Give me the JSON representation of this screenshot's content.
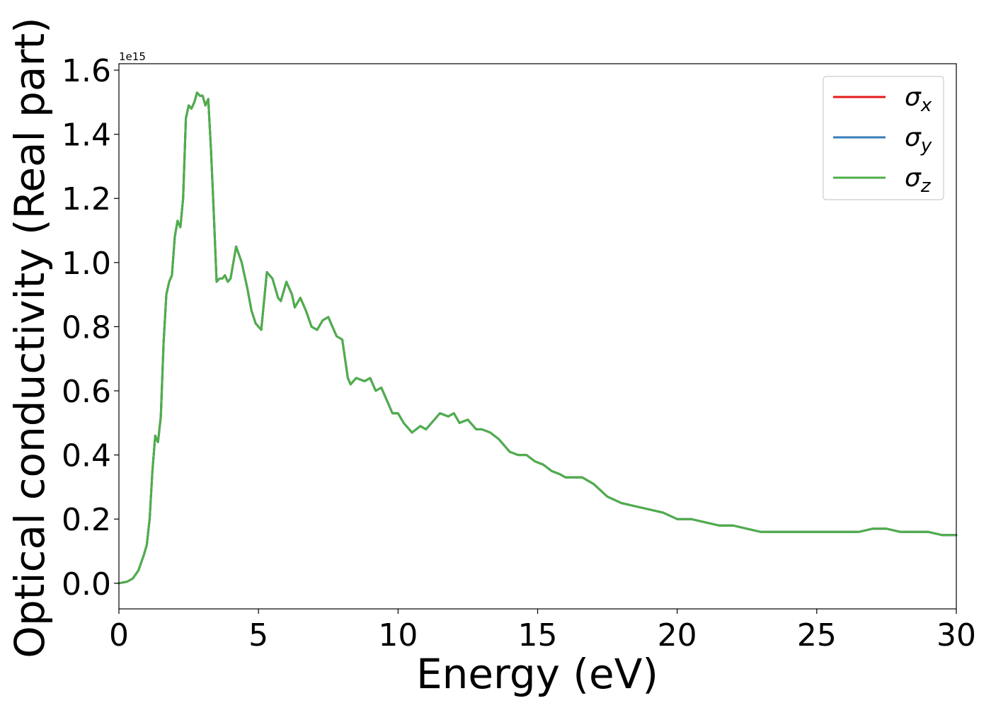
{
  "chart_data": {
    "type": "line",
    "xlabel": "Energy (eV)",
    "ylabel": "Optical conductivity (Real part)",
    "y_offset_label": "1e15",
    "xlim": [
      0,
      30
    ],
    "ylim": [
      -0.08,
      1.62
    ],
    "xticks": [
      0,
      5,
      10,
      15,
      20,
      25,
      30
    ],
    "xtick_labels": [
      "0",
      "5",
      "10",
      "15",
      "20",
      "25",
      "30"
    ],
    "yticks": [
      0.0,
      0.2,
      0.4,
      0.6,
      0.8,
      1.0,
      1.2,
      1.4,
      1.6
    ],
    "ytick_labels": [
      "0.0",
      "0.2",
      "0.4",
      "0.6",
      "0.8",
      "1.0",
      "1.2",
      "1.4",
      "1.6"
    ],
    "grid": false,
    "legend_position": "top-right",
    "series": [
      {
        "name": "σx",
        "color": "#e41a1c",
        "x": [
          0,
          0.3,
          0.5,
          0.7,
          0.9,
          1.0,
          1.1,
          1.2,
          1.3,
          1.4,
          1.5,
          1.6,
          1.7,
          1.8,
          1.9,
          2.0,
          2.1,
          2.2,
          2.3,
          2.4,
          2.5,
          2.6,
          2.7,
          2.8,
          2.9,
          3.0,
          3.1,
          3.2,
          3.3,
          3.4,
          3.5,
          3.6,
          3.7,
          3.8,
          3.9,
          4.0,
          4.2,
          4.4,
          4.6,
          4.75,
          4.9,
          5.1,
          5.3,
          5.5,
          5.7,
          5.8,
          6.0,
          6.2,
          6.3,
          6.5,
          6.7,
          6.9,
          7.1,
          7.3,
          7.5,
          7.7,
          7.8,
          8.0,
          8.2,
          8.3,
          8.5,
          8.8,
          9.0,
          9.2,
          9.4,
          9.6,
          9.8,
          10.0,
          10.2,
          10.5,
          10.8,
          11.0,
          11.3,
          11.5,
          11.8,
          12.0,
          12.2,
          12.5,
          12.8,
          13.0,
          13.3,
          13.6,
          14.0,
          14.3,
          14.6,
          14.9,
          15.2,
          15.5,
          15.8,
          16.0,
          16.3,
          16.6,
          17.0,
          17.5,
          18.0,
          18.5,
          19.0,
          19.5,
          20.0,
          20.5,
          21.0,
          21.5,
          22.0,
          22.5,
          23.0,
          23.5,
          24.0,
          24.5,
          25.0,
          25.5,
          26.0,
          26.5,
          27.0,
          27.5,
          28.0,
          28.5,
          29.0,
          29.5,
          30.0
        ],
        "y": [
          0.0,
          0.005,
          0.015,
          0.04,
          0.09,
          0.12,
          0.2,
          0.35,
          0.46,
          0.44,
          0.52,
          0.75,
          0.9,
          0.94,
          0.96,
          1.08,
          1.13,
          1.11,
          1.2,
          1.45,
          1.49,
          1.48,
          1.5,
          1.53,
          1.52,
          1.52,
          1.49,
          1.51,
          1.35,
          1.15,
          0.94,
          0.95,
          0.95,
          0.96,
          0.94,
          0.95,
          1.05,
          1.0,
          0.92,
          0.85,
          0.81,
          0.79,
          0.97,
          0.95,
          0.89,
          0.88,
          0.94,
          0.9,
          0.86,
          0.89,
          0.85,
          0.8,
          0.79,
          0.82,
          0.83,
          0.79,
          0.77,
          0.76,
          0.64,
          0.62,
          0.64,
          0.63,
          0.64,
          0.6,
          0.61,
          0.57,
          0.53,
          0.53,
          0.5,
          0.47,
          0.49,
          0.48,
          0.51,
          0.53,
          0.52,
          0.53,
          0.5,
          0.51,
          0.48,
          0.48,
          0.47,
          0.45,
          0.41,
          0.4,
          0.4,
          0.38,
          0.37,
          0.35,
          0.34,
          0.33,
          0.33,
          0.33,
          0.31,
          0.27,
          0.25,
          0.24,
          0.23,
          0.22,
          0.2,
          0.2,
          0.19,
          0.18,
          0.18,
          0.17,
          0.16,
          0.16,
          0.16,
          0.16,
          0.16,
          0.16,
          0.16,
          0.16,
          0.17,
          0.17,
          0.16,
          0.16,
          0.16,
          0.15,
          0.15
        ]
      },
      {
        "name": "σy",
        "color": "#377eb8",
        "x": [
          0,
          0.3,
          0.5,
          0.7,
          0.9,
          1.0,
          1.1,
          1.2,
          1.3,
          1.4,
          1.5,
          1.6,
          1.7,
          1.8,
          1.9,
          2.0,
          2.1,
          2.2,
          2.3,
          2.4,
          2.5,
          2.6,
          2.7,
          2.8,
          2.9,
          3.0,
          3.1,
          3.2,
          3.3,
          3.4,
          3.5,
          3.6,
          3.7,
          3.8,
          3.9,
          4.0,
          4.2,
          4.4,
          4.6,
          4.75,
          4.9,
          5.1,
          5.3,
          5.5,
          5.7,
          5.8,
          6.0,
          6.2,
          6.3,
          6.5,
          6.7,
          6.9,
          7.1,
          7.3,
          7.5,
          7.7,
          7.8,
          8.0,
          8.2,
          8.3,
          8.5,
          8.8,
          9.0,
          9.2,
          9.4,
          9.6,
          9.8,
          10.0,
          10.2,
          10.5,
          10.8,
          11.0,
          11.3,
          11.5,
          11.8,
          12.0,
          12.2,
          12.5,
          12.8,
          13.0,
          13.3,
          13.6,
          14.0,
          14.3,
          14.6,
          14.9,
          15.2,
          15.5,
          15.8,
          16.0,
          16.3,
          16.6,
          17.0,
          17.5,
          18.0,
          18.5,
          19.0,
          19.5,
          20.0,
          20.5,
          21.0,
          21.5,
          22.0,
          22.5,
          23.0,
          23.5,
          24.0,
          24.5,
          25.0,
          25.5,
          26.0,
          26.5,
          27.0,
          27.5,
          28.0,
          28.5,
          29.0,
          29.5,
          30.0
        ],
        "y": [
          0.0,
          0.005,
          0.015,
          0.04,
          0.09,
          0.12,
          0.2,
          0.35,
          0.46,
          0.44,
          0.52,
          0.75,
          0.9,
          0.94,
          0.96,
          1.08,
          1.13,
          1.11,
          1.2,
          1.45,
          1.49,
          1.48,
          1.5,
          1.53,
          1.52,
          1.52,
          1.49,
          1.51,
          1.35,
          1.15,
          0.94,
          0.95,
          0.95,
          0.96,
          0.94,
          0.95,
          1.05,
          1.0,
          0.92,
          0.85,
          0.81,
          0.79,
          0.97,
          0.95,
          0.89,
          0.88,
          0.94,
          0.9,
          0.86,
          0.89,
          0.85,
          0.8,
          0.79,
          0.82,
          0.83,
          0.79,
          0.77,
          0.76,
          0.64,
          0.62,
          0.64,
          0.63,
          0.64,
          0.6,
          0.61,
          0.57,
          0.53,
          0.53,
          0.5,
          0.47,
          0.49,
          0.48,
          0.51,
          0.53,
          0.52,
          0.53,
          0.5,
          0.51,
          0.48,
          0.48,
          0.47,
          0.45,
          0.41,
          0.4,
          0.4,
          0.38,
          0.37,
          0.35,
          0.34,
          0.33,
          0.33,
          0.33,
          0.31,
          0.27,
          0.25,
          0.24,
          0.23,
          0.22,
          0.2,
          0.2,
          0.19,
          0.18,
          0.18,
          0.17,
          0.16,
          0.16,
          0.16,
          0.16,
          0.16,
          0.16,
          0.16,
          0.16,
          0.17,
          0.17,
          0.16,
          0.16,
          0.16,
          0.15,
          0.15
        ]
      },
      {
        "name": "σz",
        "color": "#4daf4a",
        "x": [
          0,
          0.3,
          0.5,
          0.7,
          0.9,
          1.0,
          1.1,
          1.2,
          1.3,
          1.4,
          1.5,
          1.6,
          1.7,
          1.8,
          1.9,
          2.0,
          2.1,
          2.2,
          2.3,
          2.4,
          2.5,
          2.6,
          2.7,
          2.8,
          2.9,
          3.0,
          3.1,
          3.2,
          3.3,
          3.4,
          3.5,
          3.6,
          3.7,
          3.8,
          3.9,
          4.0,
          4.2,
          4.4,
          4.6,
          4.75,
          4.9,
          5.1,
          5.3,
          5.5,
          5.7,
          5.8,
          6.0,
          6.2,
          6.3,
          6.5,
          6.7,
          6.9,
          7.1,
          7.3,
          7.5,
          7.7,
          7.8,
          8.0,
          8.2,
          8.3,
          8.5,
          8.8,
          9.0,
          9.2,
          9.4,
          9.6,
          9.8,
          10.0,
          10.2,
          10.5,
          10.8,
          11.0,
          11.3,
          11.5,
          11.8,
          12.0,
          12.2,
          12.5,
          12.8,
          13.0,
          13.3,
          13.6,
          14.0,
          14.3,
          14.6,
          14.9,
          15.2,
          15.5,
          15.8,
          16.0,
          16.3,
          16.6,
          17.0,
          17.5,
          18.0,
          18.5,
          19.0,
          19.5,
          20.0,
          20.5,
          21.0,
          21.5,
          22.0,
          22.5,
          23.0,
          23.5,
          24.0,
          24.5,
          25.0,
          25.5,
          26.0,
          26.5,
          27.0,
          27.5,
          28.0,
          28.5,
          29.0,
          29.5,
          30.0
        ],
        "y": [
          0.0,
          0.005,
          0.015,
          0.04,
          0.09,
          0.12,
          0.2,
          0.35,
          0.46,
          0.44,
          0.52,
          0.75,
          0.9,
          0.94,
          0.96,
          1.08,
          1.13,
          1.11,
          1.2,
          1.45,
          1.49,
          1.48,
          1.5,
          1.53,
          1.52,
          1.52,
          1.49,
          1.51,
          1.35,
          1.15,
          0.94,
          0.95,
          0.95,
          0.96,
          0.94,
          0.95,
          1.05,
          1.0,
          0.92,
          0.85,
          0.81,
          0.79,
          0.97,
          0.95,
          0.89,
          0.88,
          0.94,
          0.9,
          0.86,
          0.89,
          0.85,
          0.8,
          0.79,
          0.82,
          0.83,
          0.79,
          0.77,
          0.76,
          0.64,
          0.62,
          0.64,
          0.63,
          0.64,
          0.6,
          0.61,
          0.57,
          0.53,
          0.53,
          0.5,
          0.47,
          0.49,
          0.48,
          0.51,
          0.53,
          0.52,
          0.53,
          0.5,
          0.51,
          0.48,
          0.48,
          0.47,
          0.45,
          0.41,
          0.4,
          0.4,
          0.38,
          0.37,
          0.35,
          0.34,
          0.33,
          0.33,
          0.33,
          0.31,
          0.27,
          0.25,
          0.24,
          0.23,
          0.22,
          0.2,
          0.2,
          0.19,
          0.18,
          0.18,
          0.17,
          0.16,
          0.16,
          0.16,
          0.16,
          0.16,
          0.16,
          0.16,
          0.16,
          0.17,
          0.17,
          0.16,
          0.16,
          0.16,
          0.15,
          0.15
        ]
      }
    ],
    "legend": [
      {
        "symbol": "σ",
        "sub": "x",
        "color": "#e41a1c"
      },
      {
        "symbol": "σ",
        "sub": "y",
        "color": "#377eb8"
      },
      {
        "symbol": "σ",
        "sub": "z",
        "color": "#4daf4a"
      }
    ]
  }
}
